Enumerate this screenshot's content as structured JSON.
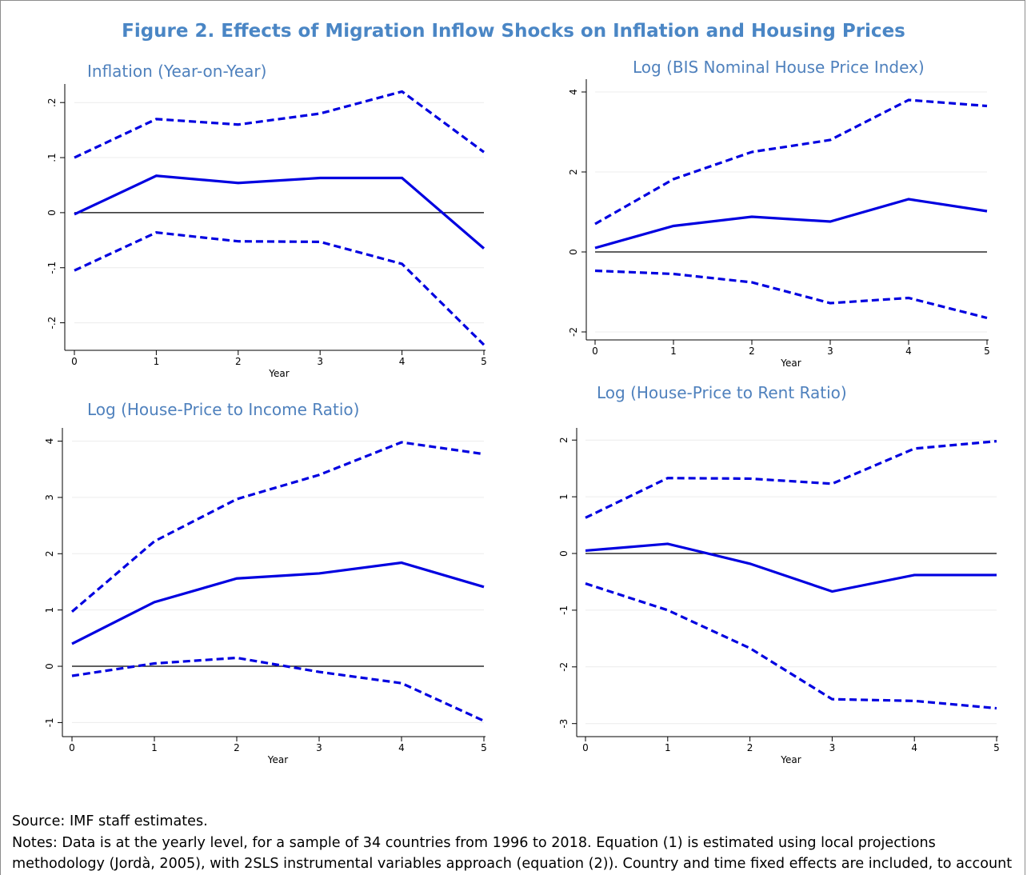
{
  "title": "Figure 2. Effects of Migration Inflow Shocks on Inflation and Housing Prices",
  "source": "Source: IMF staff estimates.",
  "notes": "Notes: Data is at the yearly level, for a sample of 34 countries from 1996 to 2018. Equation (1) is estimated using local projections methodology (Jordà, 2005), with 2SLS instrumental variables approach (equation (2)). Country and time fixed effects are included, to account for time-invariant country-specific and global factors.",
  "chart_data": [
    {
      "type": "line",
      "title": "Inflation (Year-on-Year)",
      "x_label": "Year",
      "x": [
        0,
        1,
        2,
        3,
        4,
        5
      ],
      "xlim": [
        0,
        5
      ],
      "xticks": [
        0,
        1,
        2,
        3,
        4,
        5
      ],
      "ylim": [
        -0.25,
        0.225
      ],
      "yticks": [
        {
          "value": -0.2,
          "label": "-.2"
        },
        {
          "value": -0.1,
          "label": "-.1"
        },
        0,
        {
          "value": 0.1,
          "label": ".1"
        },
        {
          "value": 0.2,
          "label": ".2"
        }
      ],
      "grid": true,
      "reference_line": 0,
      "series": [
        {
          "color": "#0000e0",
          "style": "dashed",
          "values": [
            0.1,
            0.17,
            0.16,
            0.18,
            0.22,
            0.11
          ]
        },
        {
          "color": "#0000e0",
          "style": "solid",
          "values": [
            -0.003,
            0.067,
            0.054,
            0.063,
            0.063,
            -0.065
          ]
        },
        {
          "color": "#0000e0",
          "style": "dashed",
          "values": [
            -0.105,
            -0.036,
            -0.052,
            -0.053,
            -0.093,
            -0.24
          ]
        }
      ]
    },
    {
      "type": "line",
      "title": "Log (BIS Nominal House Price Index)",
      "x_label": "Year",
      "x": [
        0,
        1,
        2,
        3,
        4,
        5
      ],
      "xlim": [
        0,
        5
      ],
      "xticks": [
        0,
        1,
        2,
        3,
        4,
        5
      ],
      "ylim": [
        -2.2,
        4.2
      ],
      "yticks": [
        -2,
        0,
        2,
        4
      ],
      "grid": true,
      "reference_line": 0,
      "series": [
        {
          "color": "#0000e0",
          "style": "dashed",
          "values": [
            0.7,
            1.82,
            2.5,
            2.8,
            3.8,
            3.65
          ]
        },
        {
          "color": "#0000e0",
          "style": "solid",
          "values": [
            0.1,
            0.65,
            0.88,
            0.76,
            1.32,
            1.02
          ]
        },
        {
          "color": "#0000e0",
          "style": "dashed",
          "values": [
            -0.47,
            -0.55,
            -0.76,
            -1.28,
            -1.15,
            -1.65
          ]
        }
      ]
    },
    {
      "type": "line",
      "title": "Log (House-Price to Income Ratio)",
      "x_label": "Year",
      "x": [
        0,
        1,
        2,
        3,
        4,
        5
      ],
      "xlim": [
        0,
        5
      ],
      "xticks": [
        0,
        1,
        2,
        3,
        4,
        5
      ],
      "ylim": [
        -1.25,
        4.15
      ],
      "yticks": [
        -1,
        0,
        1,
        2,
        3,
        4
      ],
      "grid": true,
      "reference_line": 0,
      "series": [
        {
          "color": "#0000e0",
          "style": "dashed",
          "values": [
            0.97,
            2.22,
            2.97,
            3.4,
            3.98,
            3.77
          ]
        },
        {
          "color": "#0000e0",
          "style": "solid",
          "values": [
            0.4,
            1.14,
            1.56,
            1.65,
            1.84,
            1.41
          ]
        },
        {
          "color": "#0000e0",
          "style": "dashed",
          "values": [
            -0.17,
            0.05,
            0.15,
            -0.1,
            -0.3,
            -0.97
          ]
        }
      ]
    },
    {
      "type": "line",
      "title": "Log (House-Price to Rent Ratio)",
      "x_label": "Year",
      "x": [
        0,
        1,
        2,
        3,
        4,
        5
      ],
      "xlim": [
        0,
        5
      ],
      "xticks": [
        0,
        1,
        2,
        3,
        4,
        5
      ],
      "ylim": [
        -3.23,
        2.13
      ],
      "yticks": [
        -3,
        -2,
        -1,
        0,
        1,
        2
      ],
      "grid": true,
      "reference_line": 0,
      "series": [
        {
          "color": "#0000e0",
          "style": "dashed",
          "values": [
            0.63,
            1.33,
            1.32,
            1.23,
            1.85,
            1.98
          ]
        },
        {
          "color": "#0000e0",
          "style": "solid",
          "values": [
            0.05,
            0.17,
            -0.18,
            -0.67,
            -0.38,
            -0.38
          ]
        },
        {
          "color": "#0000e0",
          "style": "dashed",
          "values": [
            -0.53,
            -1.0,
            -1.67,
            -2.57,
            -2.6,
            -2.73
          ]
        }
      ]
    }
  ]
}
